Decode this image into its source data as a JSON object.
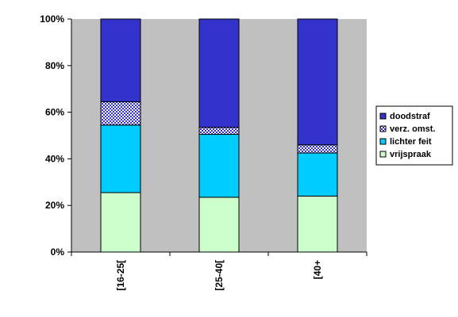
{
  "chart_data": {
    "type": "bar",
    "stacked": true,
    "percent_stacked": true,
    "categories": [
      "[16-25[",
      "[25-40[",
      "[40+"
    ],
    "series": [
      {
        "name": "vrijspraak",
        "values": [
          25.5,
          23.5,
          24.0
        ],
        "color": "#ccffcc",
        "pattern": "solid"
      },
      {
        "name": "lichter feit",
        "values": [
          29.0,
          27.0,
          18.5
        ],
        "color": "#00ccff",
        "pattern": "solid"
      },
      {
        "name": "verz. omst.",
        "values": [
          10.0,
          3.0,
          3.5
        ],
        "color": "#3333cc",
        "pattern": "checker"
      },
      {
        "name": "doodstraf",
        "values": [
          35.5,
          46.5,
          54.0
        ],
        "color": "#3333cc",
        "pattern": "solid"
      }
    ],
    "ylim": [
      0,
      100
    ],
    "yticks": [
      0,
      20,
      40,
      60,
      80,
      100
    ],
    "ytick_labels": [
      "0%",
      "20%",
      "40%",
      "60%",
      "80%",
      "100%"
    ],
    "plot_background": "#c0c0c0",
    "grid": false,
    "legend": "right",
    "legend_order": [
      "doodstraf",
      "verz. omst.",
      "lichter feit",
      "vrijspraak"
    ],
    "title": "",
    "xlabel": "",
    "ylabel": ""
  }
}
